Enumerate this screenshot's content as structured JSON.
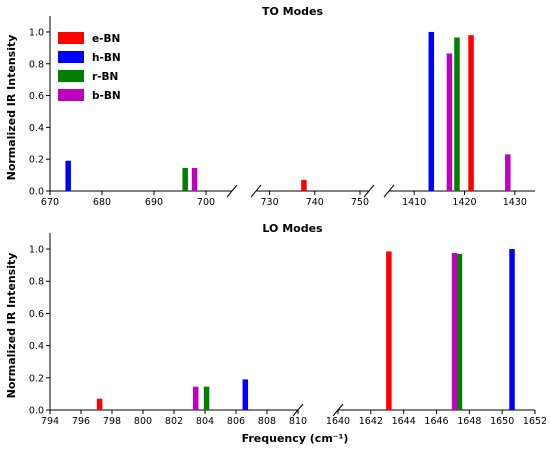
{
  "chart_data": [
    {
      "type": "bar",
      "title": "TO Modes",
      "xlabel": "",
      "ylabel": "Normalized IR Intensity",
      "ylim": [
        0,
        1.05
      ],
      "yticks": [
        "0.0",
        "0.2",
        "0.4",
        "0.6",
        "0.8",
        "1.0"
      ],
      "legend_placement": "top-left",
      "grid": false,
      "broken_axis": true,
      "segments": [
        {
          "xlim": [
            670,
            705
          ],
          "ticks": [
            "670",
            "680",
            "690",
            "700"
          ]
        },
        {
          "xlim": [
            727,
            752
          ],
          "ticks": [
            "730",
            "740",
            "750"
          ]
        },
        {
          "xlim": [
            1405,
            1434
          ],
          "ticks": [
            "1410",
            "1420",
            "1430"
          ]
        }
      ],
      "series": [
        {
          "name": "e-BN",
          "prefix": "e",
          "suffix": "-BN",
          "color": "#ff0000",
          "points": [
            [
              737.6,
              0.07
            ],
            [
              1421.3,
              0.98
            ]
          ]
        },
        {
          "name": "h-BN",
          "prefix": "h",
          "suffix": "-BN",
          "color": "#0000ff",
          "points": [
            [
              673.5,
              0.19
            ],
            [
              1413.4,
              1.0
            ]
          ]
        },
        {
          "name": "r-BN",
          "prefix": "r",
          "suffix": "-BN",
          "color": "#008000",
          "points": [
            [
              696.0,
              0.145
            ],
            [
              1418.5,
              0.965
            ]
          ]
        },
        {
          "name": "b-BN",
          "prefix": "b",
          "suffix": "-BN",
          "color": "#c000c0",
          "points": [
            [
              697.8,
              0.145
            ],
            [
              1417.0,
              0.865
            ],
            [
              1428.6,
              0.23
            ]
          ]
        }
      ]
    },
    {
      "type": "bar",
      "title": "LO Modes",
      "xlabel": "Frequency (cm⁻¹)",
      "ylabel": "Normalized IR Intensity",
      "ylim": [
        0,
        1.05
      ],
      "yticks": [
        "0.0",
        "0.2",
        "0.4",
        "0.6",
        "0.8",
        "1.0"
      ],
      "grid": false,
      "broken_axis": true,
      "segments": [
        {
          "xlim": [
            794,
            810
          ],
          "ticks": [
            "794",
            "796",
            "798",
            "800",
            "802",
            "804",
            "806",
            "808",
            "810"
          ]
        },
        {
          "xlim": [
            1640,
            1652
          ],
          "ticks": [
            "1640",
            "1642",
            "1644",
            "1646",
            "1648",
            "1650",
            "1652"
          ]
        }
      ],
      "series": [
        {
          "name": "e-BN",
          "color": "#ff0000",
          "points": [
            [
              797.2,
              0.07
            ],
            [
              1643.1,
              0.985
            ]
          ]
        },
        {
          "name": "h-BN",
          "color": "#0000ff",
          "points": [
            [
              806.6,
              0.19
            ],
            [
              1650.6,
              1.0
            ]
          ]
        },
        {
          "name": "r-BN",
          "color": "#008000",
          "points": [
            [
              804.1,
              0.145
            ],
            [
              1647.4,
              0.97
            ]
          ]
        },
        {
          "name": "b-BN",
          "color": "#c000c0",
          "points": [
            [
              803.4,
              0.145
            ],
            [
              1647.1,
              0.975
            ]
          ]
        }
      ]
    }
  ]
}
